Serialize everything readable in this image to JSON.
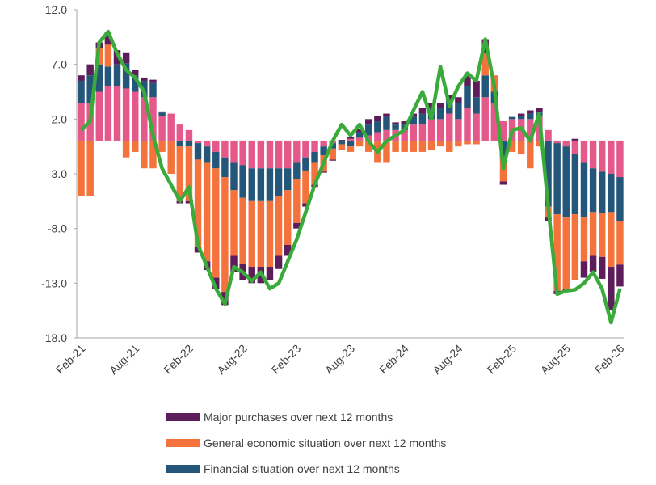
{
  "chart_data": {
    "type": "bar",
    "stacked": true,
    "categories": [
      "Feb-21",
      null,
      null,
      null,
      null,
      null,
      "Aug-21",
      null,
      null,
      null,
      null,
      null,
      "Feb-22",
      null,
      null,
      null,
      null,
      null,
      "Aug-22",
      null,
      null,
      null,
      null,
      null,
      "Feb-23",
      null,
      null,
      null,
      null,
      null,
      "Aug-23",
      null,
      null,
      null,
      null,
      null,
      "Feb-24",
      null,
      null,
      null,
      null,
      null,
      "Aug-24",
      null,
      null,
      null,
      null,
      null,
      "Feb-25",
      null,
      null,
      null,
      null,
      null,
      "Aug-25",
      null,
      null,
      null,
      null,
      null,
      "Feb-26"
    ],
    "ylim": [
      -18,
      12
    ],
    "yticks": [
      {
        "value": 12,
        "label": "12.0"
      },
      {
        "value": 7,
        "label": "7.0"
      },
      {
        "value": 2,
        "label": "2.0"
      },
      {
        "value": -3,
        "label": "-3.0"
      },
      {
        "value": -8,
        "label": "-8.0"
      },
      {
        "value": -13,
        "label": "-13.0"
      },
      {
        "value": -18,
        "label": "-18.0"
      }
    ],
    "grid": false,
    "legend": "bottom",
    "series": [
      {
        "color": "#e5588a",
        "values": [
          3.5,
          3.5,
          4.5,
          5,
          5,
          4.8,
          4.5,
          4,
          4,
          2.3,
          2.5,
          1.5,
          1,
          -0.2,
          -0.5,
          -1,
          -1.5,
          -2,
          -2.2,
          -2.5,
          -2.5,
          -2.5,
          -2.5,
          -2.5,
          -2,
          -1.5,
          -1,
          -0.5,
          -0.2,
          0,
          0.2,
          0.3,
          0.5,
          0.8,
          1,
          1,
          1,
          1.5,
          1.5,
          2,
          2,
          2.5,
          2,
          3,
          2.5,
          4,
          3.5,
          1.8,
          2,
          2,
          2,
          2.3,
          1,
          -0.2,
          -0.5,
          -1.2,
          -2,
          -2.5,
          -2.8,
          -3,
          -3.3
        ]
      },
      {
        "name": "Financial situation over next 12 months",
        "color": "#24567a",
        "values": [
          2,
          2.5,
          2.5,
          1.8,
          2,
          2.3,
          1.5,
          1.5,
          1.3,
          0.3,
          0,
          -0.5,
          -0.5,
          -1.5,
          -1.5,
          -1.5,
          -1.8,
          -2.5,
          -3,
          -3,
          -3,
          -3,
          -2.5,
          -2,
          -1.5,
          -1.2,
          -1,
          -0.8,
          -0.5,
          -0.3,
          -0.5,
          0.5,
          1,
          1,
          1.2,
          0.5,
          0.5,
          0.7,
          1,
          1,
          1,
          1.2,
          1.5,
          2,
          1.5,
          2,
          1,
          -1.5,
          0.2,
          0.3,
          0.5,
          0.3,
          -6,
          -6.5,
          -6.5,
          -5.5,
          -5,
          -4,
          -3.8,
          -3.5,
          -4
        ]
      },
      {
        "name": "General economic situation over next 12 months",
        "color": "#f4733c",
        "values": [
          -5,
          -5,
          1.5,
          2,
          0,
          -1.5,
          -1,
          -2.5,
          -2.5,
          -1,
          -3,
          -5,
          -5,
          -8,
          -9,
          -10,
          -10.5,
          -6,
          -6,
          -6,
          -6,
          -6,
          -5.5,
          -5,
          -4,
          -3,
          -2,
          -1.5,
          -1,
          -0.5,
          -0.5,
          -0.5,
          -1,
          -2,
          -2,
          -1,
          -1,
          -1,
          -1,
          -0.8,
          -0.5,
          -1,
          -0.5,
          -0.3,
          -0.3,
          2,
          1.5,
          -2.2,
          -1,
          -1.2,
          -2.5,
          -0.5,
          -1,
          -7,
          -6.5,
          -6,
          -4,
          -4,
          -4,
          -5,
          -4
        ]
      },
      {
        "name": "Major purchases over next 12 months",
        "color": "#5c1d5a",
        "values": [
          0.5,
          1,
          0.5,
          1.2,
          1.3,
          1,
          0.5,
          0.3,
          0.3,
          0.1,
          0,
          -0.2,
          -0.2,
          -0.5,
          -0.8,
          -1,
          -1.2,
          -1.5,
          -1.5,
          -1.5,
          -1.5,
          -1.2,
          -1.2,
          -1,
          -0.5,
          -0.3,
          -0.2,
          -0.1,
          -0.1,
          0.1,
          0.2,
          0.3,
          0.5,
          0.5,
          0.3,
          0.2,
          0.3,
          0.3,
          0.5,
          0.5,
          0.5,
          0.5,
          0.5,
          1,
          1.5,
          1.3,
          0,
          -0.3,
          0,
          0.2,
          0.3,
          0.4,
          -0.3,
          -0.3,
          -0.2,
          0.2,
          -1.5,
          -1.5,
          -2,
          -4,
          -2
        ]
      },
      {
        "type": "line",
        "color": "#3aab3a",
        "values": [
          1.0,
          1.8,
          9.0,
          10.0,
          8.0,
          6.5,
          5.8,
          4.5,
          0.5,
          -2.5,
          -4.0,
          -5.5,
          -4.2,
          -9.5,
          -11.5,
          -13.5,
          -14.9,
          -11.5,
          -12.0,
          -12.8,
          -12.0,
          -13.5,
          -13.0,
          -11.0,
          -9.0,
          -6.5,
          -4.0,
          -2.0,
          0.0,
          1.5,
          0.5,
          1.5,
          0.0,
          -1.0,
          0.0,
          0.5,
          1.0,
          2.8,
          4.5,
          2.0,
          6.8,
          3.2,
          5.0,
          6.2,
          5.5,
          9.3,
          5.0,
          -2.5,
          1.0,
          1.2,
          0.0,
          2.5,
          -6.0,
          -14.0,
          -13.7,
          -13.6,
          -13.0,
          -12.0,
          -13.5,
          -16.6,
          -13.5
        ]
      }
    ]
  }
}
